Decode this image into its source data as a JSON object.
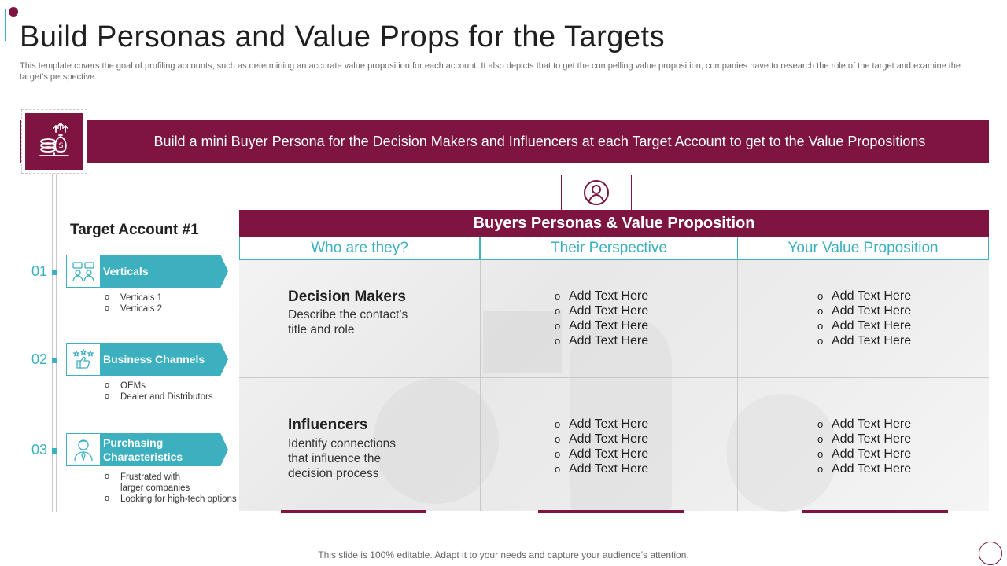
{
  "header": {
    "title": "Build Personas and Value Props for the Targets",
    "subtitle": "This template covers the goal of profiling accounts, such as determining an accurate value proposition for each account. It also depicts that to get the compelling value proposition, companies have to research the role of the target and examine the target’s perspective."
  },
  "banner": {
    "text": "Build a mini Buyer Persona for the Decision Makers and Influencers at each Target Account to get to the Value Propositions",
    "icon": "money-scale-icon"
  },
  "sidebar": {
    "title": "Target Account #1",
    "categories": [
      {
        "number": "01",
        "label": "Verticals",
        "icon": "people-chat-icon",
        "items": [
          "Verticals 1",
          "Verticals 2"
        ]
      },
      {
        "number": "02",
        "label": "Business Channels",
        "icon": "thumbs-up-stars-icon",
        "items": [
          "OEMs",
          "Dealer and Distributors"
        ]
      },
      {
        "number": "03",
        "label": "Purchasing Characteristics",
        "icon": "businessman-icon",
        "items": [
          "Frustrated with larger companies",
          "Looking for high-tech options"
        ]
      }
    ]
  },
  "table": {
    "title": "Buyers Personas & Value Proposition",
    "persona_icon": "user-circle-icon",
    "columns": [
      "Who are they?",
      "Their Perspective",
      "Your Value Proposition"
    ],
    "rows": [
      {
        "title": "Decision Makers",
        "description": "Describe the contact’s title and role",
        "perspective": [
          "Add Text Here",
          "Add Text Here",
          "Add Text Here",
          "Add Text Here"
        ],
        "value_prop": [
          "Add Text Here",
          "Add Text Here",
          "Add Text Here",
          "Add Text Here"
        ]
      },
      {
        "title": "Influencers",
        "description": "Identify connections that influence the decision process",
        "perspective": [
          "Add Text Here",
          "Add Text Here",
          "Add Text Here",
          "Add Text Here"
        ],
        "value_prop": [
          "Add Text Here",
          "Add Text Here",
          "Add Text Here",
          "Add Text Here"
        ]
      }
    ]
  },
  "footer": {
    "text": "This slide is 100% editable. Adapt it to your needs and capture your audience’s attention."
  },
  "colors": {
    "accent": "#7d1540",
    "teal": "#3cb0bf"
  }
}
